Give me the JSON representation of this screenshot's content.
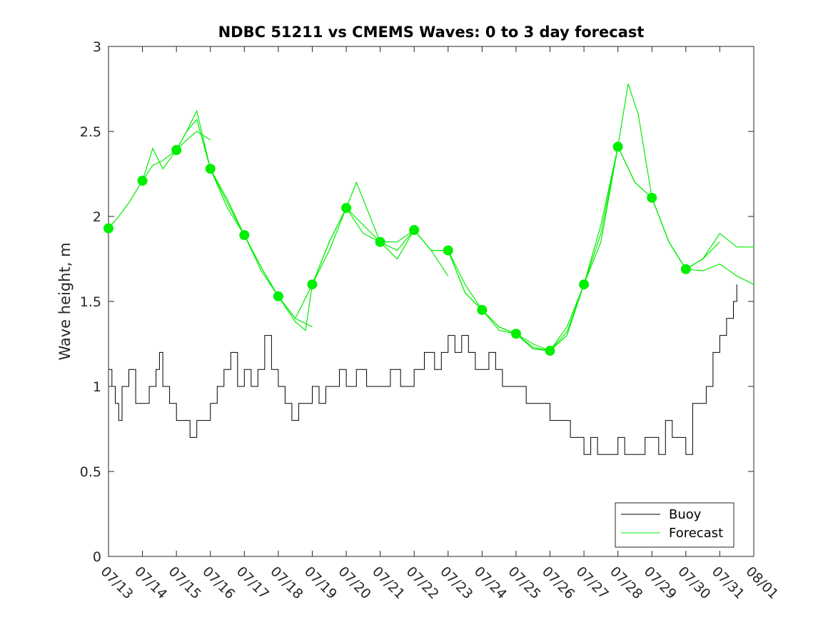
{
  "chart_data": {
    "type": "line",
    "title": "NDBC 51211 vs CMEMS Waves: 0 to 3 day forecast",
    "xlabel": "",
    "ylabel": "Wave height, m",
    "ylim": [
      0,
      3
    ],
    "yticks": [
      0,
      0.5,
      1,
      1.5,
      2,
      2.5,
      3
    ],
    "ytick_labels": [
      "0",
      "0.5",
      "1",
      "1.5",
      "2",
      "2.5",
      "3"
    ],
    "xlim_day": [
      13,
      32
    ],
    "xtick_labels": [
      "07/13",
      "07/14",
      "07/15",
      "07/16",
      "07/17",
      "07/18",
      "07/19",
      "07/20",
      "07/21",
      "07/22",
      "07/23",
      "07/24",
      "07/25",
      "07/26",
      "07/27",
      "07/28",
      "07/29",
      "07/30",
      "07/31",
      "08/01"
    ],
    "grid": false,
    "legend": {
      "position": "bottom-right",
      "entries": [
        "Buoy",
        "Forecast"
      ]
    },
    "colors": {
      "buoy": "#000000",
      "forecast": "#00ee00"
    },
    "series": [
      {
        "name": "Buoy",
        "x": [
          13.0,
          13.1,
          13.2,
          13.3,
          13.4,
          13.6,
          13.8,
          14.0,
          14.2,
          14.4,
          14.5,
          14.6,
          14.8,
          15.0,
          15.2,
          15.4,
          15.6,
          15.8,
          16.0,
          16.2,
          16.4,
          16.6,
          16.8,
          17.0,
          17.2,
          17.4,
          17.6,
          17.8,
          18.0,
          18.2,
          18.4,
          18.6,
          18.8,
          19.0,
          19.2,
          19.4,
          19.6,
          19.8,
          20.0,
          20.3,
          20.6,
          21.0,
          21.3,
          21.6,
          22.0,
          22.3,
          22.6,
          22.8,
          23.0,
          23.2,
          23.4,
          23.6,
          23.8,
          24.0,
          24.2,
          24.4,
          24.6,
          24.8,
          25.0,
          25.3,
          25.6,
          26.0,
          26.3,
          26.6,
          26.8,
          27.0,
          27.2,
          27.4,
          27.6,
          27.8,
          28.0,
          28.2,
          28.4,
          28.6,
          28.8,
          29.0,
          29.2,
          29.4,
          29.6,
          29.8,
          30.0,
          30.2,
          30.4,
          30.6,
          30.8,
          31.0,
          31.2,
          31.4,
          31.5
        ],
        "y": [
          1.1,
          1.0,
          0.9,
          0.8,
          1.0,
          1.1,
          0.9,
          0.9,
          1.0,
          1.1,
          1.2,
          1.0,
          0.9,
          0.8,
          0.8,
          0.7,
          0.8,
          0.8,
          0.9,
          1.0,
          1.1,
          1.2,
          1.0,
          1.1,
          1.0,
          1.1,
          1.3,
          1.1,
          1.0,
          0.9,
          0.8,
          0.9,
          0.9,
          1.0,
          0.9,
          1.0,
          1.0,
          1.1,
          1.0,
          1.1,
          1.0,
          1.0,
          1.1,
          1.0,
          1.1,
          1.2,
          1.1,
          1.2,
          1.3,
          1.2,
          1.3,
          1.2,
          1.1,
          1.1,
          1.2,
          1.1,
          1.0,
          1.0,
          1.0,
          0.9,
          0.9,
          0.8,
          0.8,
          0.7,
          0.7,
          0.6,
          0.7,
          0.6,
          0.6,
          0.6,
          0.7,
          0.6,
          0.6,
          0.6,
          0.7,
          0.7,
          0.6,
          0.8,
          0.7,
          0.7,
          0.6,
          0.9,
          0.9,
          1.0,
          1.2,
          1.3,
          1.4,
          1.5,
          1.6
        ]
      },
      {
        "name": "Forecast",
        "runs": [
          {
            "x": [
              13.0,
              13.3,
              13.6,
              14.0,
              14.3,
              14.6,
              15.0,
              15.3,
              15.6,
              16.0
            ],
            "y": [
              1.93,
              2.0,
              2.08,
              2.21,
              2.3,
              2.33,
              2.39,
              2.45,
              2.5,
              2.45
            ]
          },
          {
            "x": [
              14.0,
              14.3,
              14.6,
              15.0,
              15.3,
              15.6,
              16.0,
              16.5,
              17.0
            ],
            "y": [
              2.21,
              2.4,
              2.28,
              2.39,
              2.5,
              2.57,
              2.28,
              2.1,
              1.89
            ]
          },
          {
            "x": [
              15.0,
              15.3,
              15.6,
              16.0,
              16.5,
              17.0,
              17.5,
              18.0
            ],
            "y": [
              2.39,
              2.5,
              2.62,
              2.28,
              2.05,
              1.89,
              1.7,
              1.53
            ]
          },
          {
            "x": [
              16.0,
              16.5,
              17.0,
              17.5,
              18.0,
              18.5,
              19.0
            ],
            "y": [
              2.28,
              2.08,
              1.89,
              1.7,
              1.53,
              1.4,
              1.35
            ]
          },
          {
            "x": [
              17.0,
              17.5,
              18.0,
              18.5,
              18.8,
              19.0,
              19.5,
              20.0
            ],
            "y": [
              1.89,
              1.68,
              1.53,
              1.38,
              1.33,
              1.6,
              1.85,
              2.05
            ]
          },
          {
            "x": [
              18.0,
              18.5,
              19.0,
              19.5,
              20.0,
              20.3,
              20.6,
              21.0
            ],
            "y": [
              1.53,
              1.4,
              1.6,
              1.8,
              2.05,
              2.2,
              2.05,
              1.85
            ]
          },
          {
            "x": [
              19.0,
              19.5,
              20.0,
              20.5,
              21.0,
              21.5,
              22.0
            ],
            "y": [
              1.6,
              1.85,
              2.05,
              1.95,
              1.85,
              1.85,
              1.92
            ]
          },
          {
            "x": [
              20.0,
              20.5,
              21.0,
              21.5,
              22.0,
              22.5,
              23.0
            ],
            "y": [
              2.05,
              1.9,
              1.85,
              1.8,
              1.92,
              1.8,
              1.65
            ]
          },
          {
            "x": [
              21.0,
              21.5,
              22.0,
              22.5,
              23.0,
              23.5,
              24.0
            ],
            "y": [
              1.85,
              1.75,
              1.92,
              1.8,
              1.8,
              1.6,
              1.45
            ]
          },
          {
            "x": [
              22.0,
              22.5,
              23.0,
              23.5,
              24.0,
              24.5,
              25.0
            ],
            "y": [
              1.92,
              1.8,
              1.8,
              1.55,
              1.45,
              1.35,
              1.31
            ]
          },
          {
            "x": [
              23.0,
              23.5,
              24.0,
              24.5,
              25.0,
              25.5,
              26.0
            ],
            "y": [
              1.8,
              1.55,
              1.45,
              1.33,
              1.31,
              1.25,
              1.21
            ]
          },
          {
            "x": [
              24.0,
              24.5,
              25.0,
              25.5,
              26.0,
              26.5,
              27.0
            ],
            "y": [
              1.45,
              1.35,
              1.31,
              1.23,
              1.21,
              1.3,
              1.6
            ]
          },
          {
            "x": [
              25.0,
              25.5,
              26.0,
              26.5,
              27.0,
              27.5,
              28.0
            ],
            "y": [
              1.31,
              1.22,
              1.21,
              1.35,
              1.6,
              1.9,
              2.41
            ]
          },
          {
            "x": [
              26.0,
              26.5,
              27.0,
              27.5,
              28.0,
              28.3,
              28.6,
              29.0
            ],
            "y": [
              1.21,
              1.32,
              1.6,
              1.95,
              2.41,
              2.78,
              2.6,
              2.11
            ]
          },
          {
            "x": [
              27.0,
              27.5,
              28.0,
              28.5,
              29.0,
              29.5,
              30.0
            ],
            "y": [
              1.6,
              1.85,
              2.41,
              2.2,
              2.11,
              1.85,
              1.69
            ]
          },
          {
            "x": [
              28.0,
              28.5,
              29.0,
              29.5,
              30.0,
              30.5,
              31.0
            ],
            "y": [
              2.41,
              2.2,
              2.11,
              1.85,
              1.69,
              1.75,
              1.85
            ]
          },
          {
            "x": [
              29.0,
              29.5,
              30.0,
              30.5,
              31.0,
              31.5,
              32.0
            ],
            "y": [
              2.11,
              1.85,
              1.69,
              1.68,
              1.72,
              1.65,
              1.6
            ]
          },
          {
            "x": [
              30.0,
              30.5,
              31.0,
              31.5,
              32.0
            ],
            "y": [
              1.69,
              1.75,
              1.9,
              1.82,
              1.82
            ]
          }
        ],
        "markers": {
          "x": [
            13,
            14,
            15,
            16,
            17,
            18,
            19,
            20,
            21,
            22,
            23,
            24,
            25,
            26,
            27,
            28,
            29,
            30
          ],
          "y": [
            1.93,
            2.21,
            2.39,
            2.28,
            1.89,
            1.53,
            1.6,
            2.05,
            1.85,
            1.92,
            1.8,
            1.45,
            1.31,
            1.21,
            1.6,
            2.41,
            2.11,
            1.69
          ]
        }
      }
    ]
  }
}
